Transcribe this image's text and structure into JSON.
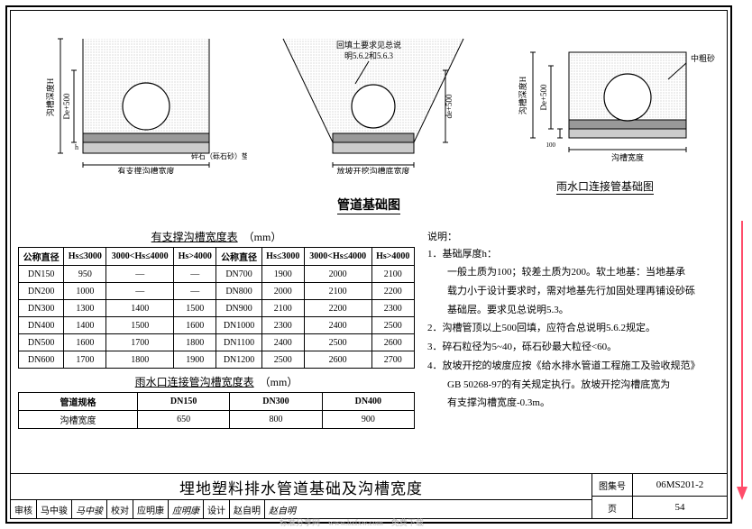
{
  "diagrams": {
    "left": {
      "label_v1": "沟槽深度H",
      "label_v2": "De+500",
      "label_h": "h",
      "label_bottom": "有支撑沟槽宽度",
      "label_layer": "碎石（砾石砂）垫层"
    },
    "mid": {
      "note1": "回填土要求见总说",
      "note2": "明5.6.2和5.6.3",
      "label_v": "de+500",
      "label_bottom": "放坡开挖沟槽底宽度"
    },
    "right": {
      "label_v1": "沟槽深度H",
      "label_v2": "De+500",
      "label_h": "100",
      "label_bottom": "沟槽宽度",
      "label_layer": "中粗砂"
    },
    "title_main": "管道基础图",
    "title_right": "雨水口连接管基础图"
  },
  "table1": {
    "title": "有支撑沟槽宽度表",
    "unit": "（mm）",
    "headers": [
      "公称直径",
      "Hs≤3000",
      "3000<Hs≤4000",
      "Hs>4000",
      "公称直径",
      "Hs≤3000",
      "3000<Hs≤4000",
      "Hs>4000"
    ],
    "rows": [
      [
        "DN150",
        "950",
        "—",
        "—",
        "DN700",
        "1900",
        "2000",
        "2100"
      ],
      [
        "DN200",
        "1000",
        "—",
        "—",
        "DN800",
        "2000",
        "2100",
        "2200"
      ],
      [
        "DN300",
        "1300",
        "1400",
        "1500",
        "DN900",
        "2100",
        "2200",
        "2300"
      ],
      [
        "DN400",
        "1400",
        "1500",
        "1600",
        "DN1000",
        "2300",
        "2400",
        "2500"
      ],
      [
        "DN500",
        "1600",
        "1700",
        "1800",
        "DN1100",
        "2400",
        "2500",
        "2600"
      ],
      [
        "DN600",
        "1700",
        "1800",
        "1900",
        "DN1200",
        "2500",
        "2600",
        "2700"
      ]
    ]
  },
  "table2": {
    "title": "雨水口连接管沟槽宽度表",
    "unit": "（mm）",
    "headers": [
      "管道规格",
      "DN150",
      "DN300",
      "DN400"
    ],
    "rows": [
      [
        "沟槽宽度",
        "650",
        "800",
        "900"
      ]
    ]
  },
  "notes": {
    "head": "说明：",
    "items": [
      "1．基础厚度h：",
      "　　一般土质为100；较差土质为200。软土地基：当地基承",
      "　　载力小于设计要求时，需对地基先行加固处理再铺设砂砾",
      "　　基础层。要求见总说明5.3。",
      "2．沟槽管顶以上500回填，应符合总说明5.6.2规定。",
      "3．碎石粒径为5~40，砾石砂最大粒径<60。",
      "4．放坡开挖的坡度应按《给水排水管道工程施工及验收规范》",
      "　　GB 50268-97的有关规定执行。放坡开挖沟槽底宽为",
      "　　有支撑沟槽宽度-0.3m。"
    ]
  },
  "footer": {
    "title": "埋地塑料排水管道基础及沟槽宽度",
    "set_label": "图集号",
    "set_val": "06MS201-2",
    "page_label": "页",
    "page_val": "54",
    "s1": "审核",
    "s1n": "马中骏",
    "s2": "校对",
    "s2n": "应明康",
    "s3": "设计",
    "s3n": "赵自明"
  },
  "watermark": "标准分享网　www.bzfxw.com　免费下载",
  "colors": {
    "fill": "#d8d8d8",
    "stroke": "#000",
    "arrow": "#ff4d6a"
  }
}
